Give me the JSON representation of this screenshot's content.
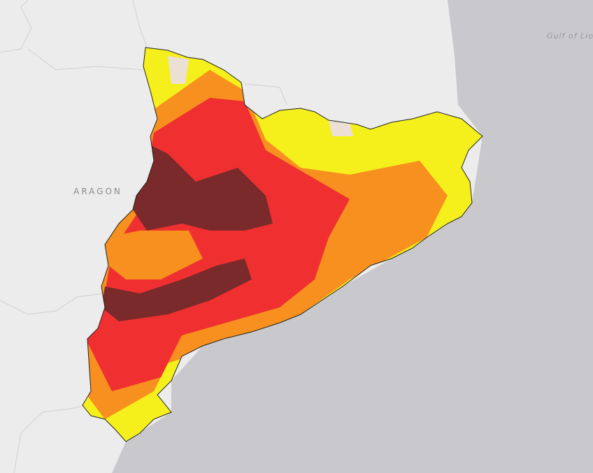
{
  "labels": {
    "region": "ARAGON",
    "sea": "Gulf of Lion"
  }
}
